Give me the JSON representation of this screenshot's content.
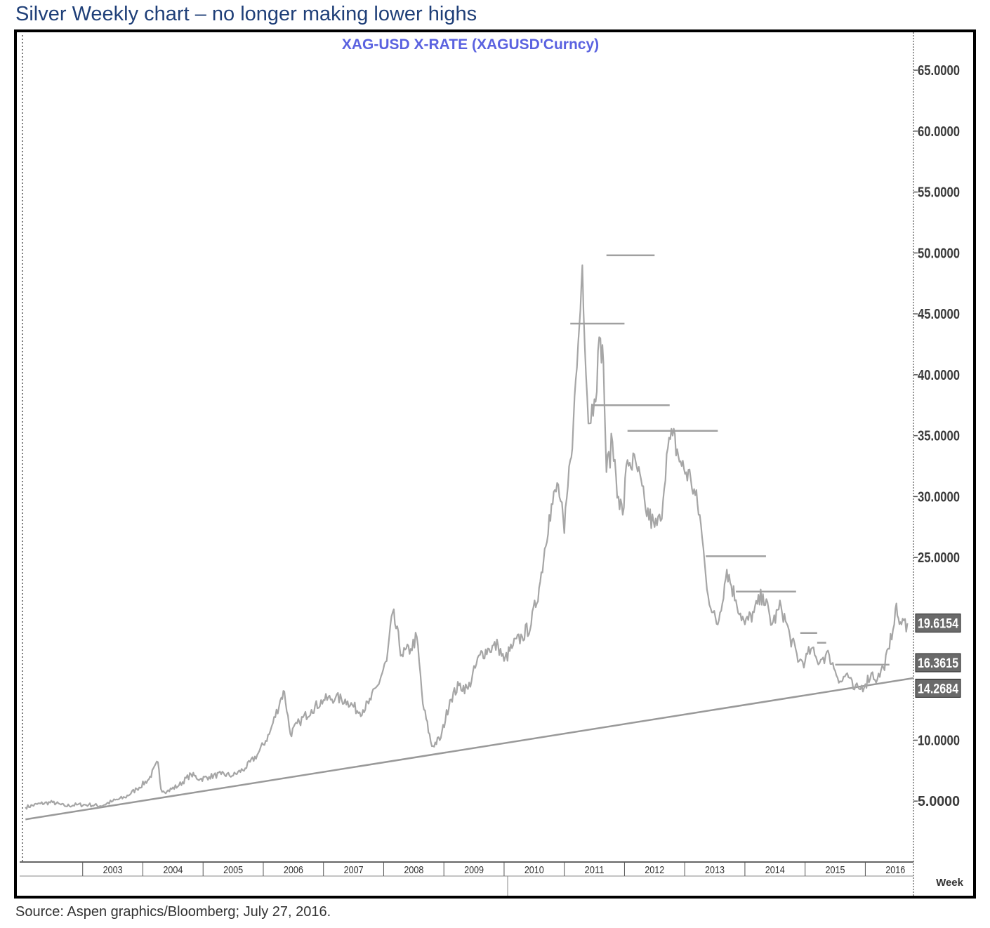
{
  "header": {
    "title": "Silver Weekly chart – no longer making lower highs"
  },
  "footer": {
    "source": "Source: Aspen graphics/Bloomberg; July 27, 2016."
  },
  "chart_data": {
    "type": "line",
    "title": "XAG-USD  X-RATE  (XAGUSD'Curncy)",
    "xlabel": "Week",
    "ylabel": "",
    "ylim": [
      0,
      66.5
    ],
    "xlim": [
      2002.0,
      2016.8
    ],
    "grid": false,
    "y_ticks": [
      "5.0000",
      "10.0000",
      "25.0000",
      "30.0000",
      "35.0000",
      "40.0000",
      "45.0000",
      "50.0000",
      "55.0000",
      "60.0000",
      "65.0000"
    ],
    "x_ticks": [
      "2003",
      "2004",
      "2005",
      "2006",
      "2007",
      "2008",
      "2009",
      "2010",
      "2011",
      "2012",
      "2013",
      "2014",
      "2015",
      "2016"
    ],
    "price_labels": [
      {
        "text": "19.6154",
        "value": 19.6154
      },
      {
        "text": "16.3615",
        "value": 16.3615
      },
      {
        "text": "14.2684",
        "value": 14.2684
      }
    ],
    "series": [
      {
        "x": [
          2002.05,
          2002.3,
          2002.5,
          2002.7,
          2002.9,
          2003.1,
          2003.3,
          2003.5,
          2003.7,
          2003.9,
          2004.1,
          2004.25,
          2004.3,
          2004.4,
          2004.6,
          2004.8,
          2004.95,
          2005.1,
          2005.3,
          2005.5,
          2005.7,
          2005.9,
          2006.1,
          2006.3,
          2006.35,
          2006.45,
          2006.6,
          2006.8,
          2007.0,
          2007.2,
          2007.4,
          2007.6,
          2007.75,
          2007.9,
          2008.05,
          2008.15,
          2008.3,
          2008.45,
          2008.55,
          2008.65,
          2008.8,
          2008.95,
          2009.1,
          2009.25,
          2009.4,
          2009.6,
          2009.75,
          2009.9,
          2010.0,
          2010.15,
          2010.3,
          2010.45,
          2010.6,
          2010.75,
          2010.9,
          2011.0,
          2011.1,
          2011.15,
          2011.25,
          2011.3,
          2011.4,
          2011.5,
          2011.6,
          2011.65,
          2011.7,
          2011.8,
          2011.9,
          2011.97,
          2012.05,
          2012.2,
          2012.35,
          2012.5,
          2012.6,
          2012.7,
          2012.8,
          2012.95,
          2013.1,
          2013.25,
          2013.35,
          2013.45,
          2013.55,
          2013.7,
          2013.85,
          2014.0,
          2014.15,
          2014.3,
          2014.45,
          2014.6,
          2014.75,
          2014.9,
          2015.0,
          2015.1,
          2015.2,
          2015.3,
          2015.4,
          2015.5,
          2015.6,
          2015.7,
          2015.8,
          2015.9,
          2016.0,
          2016.1,
          2016.2,
          2016.3,
          2016.4,
          2016.5,
          2016.55,
          2016.6,
          2016.7
        ],
        "y": [
          4.5,
          4.8,
          4.9,
          4.6,
          4.7,
          4.7,
          4.6,
          5.0,
          5.3,
          6.0,
          6.8,
          8.2,
          6.0,
          5.8,
          6.3,
          7.2,
          6.8,
          7.0,
          7.2,
          7.1,
          7.7,
          8.8,
          10.5,
          13.5,
          14.0,
          10.5,
          11.5,
          12.5,
          13.3,
          13.5,
          13.2,
          12.3,
          13.0,
          14.5,
          16.5,
          20.5,
          17.0,
          17.5,
          18.5,
          13.0,
          9.5,
          10.2,
          13.3,
          14.5,
          14.2,
          17.0,
          17.5,
          17.8,
          16.5,
          17.8,
          18.5,
          19.5,
          23.0,
          28.5,
          31.0,
          27.0,
          33.0,
          36.0,
          44.0,
          49.0,
          36.0,
          38.0,
          43.0,
          41.0,
          32.0,
          34.5,
          30.0,
          28.5,
          33.0,
          32.5,
          29.0,
          27.5,
          28.0,
          33.5,
          35.0,
          32.5,
          31.5,
          28.5,
          23.5,
          20.5,
          19.5,
          24.0,
          21.5,
          19.5,
          20.5,
          22.0,
          19.5,
          21.0,
          18.5,
          16.5,
          16.5,
          17.5,
          16.5,
          16.8,
          17.0,
          15.7,
          14.8,
          15.5,
          14.2,
          14.2,
          14.6,
          15.5,
          15.0,
          16.0,
          17.5,
          20.8,
          20.0,
          19.5,
          19.6
        ]
      }
    ],
    "annotations": {
      "lower_highs": [
        {
          "y": 49.8,
          "x": [
            2011.7,
            2012.5
          ]
        },
        {
          "y": 44.2,
          "x": [
            2011.1,
            2012.0
          ]
        },
        {
          "y": 37.5,
          "x": [
            2011.45,
            2012.75
          ]
        },
        {
          "y": 35.4,
          "x": [
            2012.05,
            2013.55
          ]
        },
        {
          "y": 25.1,
          "x": [
            2013.35,
            2014.35
          ]
        },
        {
          "y": 22.2,
          "x": [
            2013.85,
            2014.85
          ]
        },
        {
          "y": 18.8,
          "x": [
            2014.92,
            2015.2
          ]
        },
        {
          "y": 18.0,
          "x": [
            2015.2,
            2015.35
          ]
        },
        {
          "y": 16.2,
          "x": [
            2015.5,
            2016.4
          ]
        }
      ],
      "trendline": {
        "x": [
          2002.05,
          2016.8
        ],
        "y": [
          3.5,
          15.1
        ]
      },
      "low_markers": [
        {
          "x": 2008.65,
          "y": 8.5
        },
        {
          "x": 2015.9,
          "y": 13.8
        }
      ]
    }
  }
}
